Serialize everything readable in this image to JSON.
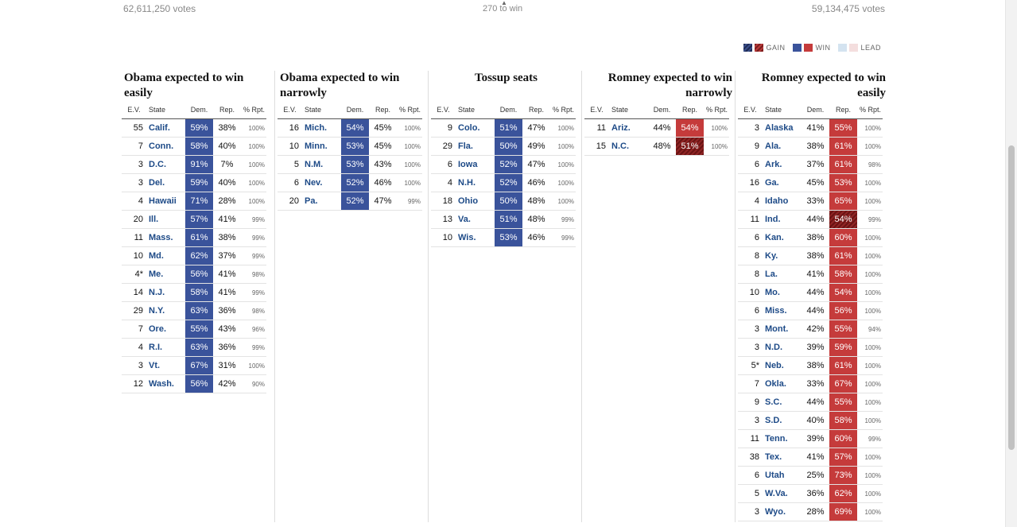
{
  "header": {
    "obama_votes": "62,611,250 votes",
    "romney_votes": "59,134,475 votes",
    "to_win": "270 to win"
  },
  "legend": {
    "gain": "GAIN",
    "win": "WIN",
    "lead": "LEAD"
  },
  "column_headers": {
    "ev": "E.V.",
    "state": "State",
    "dem": "Dem.",
    "rep": "Rep.",
    "rpt": "% Rpt."
  },
  "columns": [
    {
      "title": "Obama expected to win easily",
      "rows": [
        {
          "ev": "55",
          "state": "Calif.",
          "dem": "59%",
          "rep": "38%",
          "rpt": "100%",
          "win": "D"
        },
        {
          "ev": "7",
          "state": "Conn.",
          "dem": "58%",
          "rep": "40%",
          "rpt": "100%",
          "win": "D"
        },
        {
          "ev": "3",
          "state": "D.C.",
          "dem": "91%",
          "rep": "7%",
          "rpt": "100%",
          "win": "D"
        },
        {
          "ev": "3",
          "state": "Del.",
          "dem": "59%",
          "rep": "40%",
          "rpt": "100%",
          "win": "D"
        },
        {
          "ev": "4",
          "state": "Hawaii",
          "dem": "71%",
          "rep": "28%",
          "rpt": "100%",
          "win": "D"
        },
        {
          "ev": "20",
          "state": "Ill.",
          "dem": "57%",
          "rep": "41%",
          "rpt": "99%",
          "win": "D"
        },
        {
          "ev": "11",
          "state": "Mass.",
          "dem": "61%",
          "rep": "38%",
          "rpt": "99%",
          "win": "D"
        },
        {
          "ev": "10",
          "state": "Md.",
          "dem": "62%",
          "rep": "37%",
          "rpt": "99%",
          "win": "D"
        },
        {
          "ev": "4*",
          "state": "Me.",
          "dem": "56%",
          "rep": "41%",
          "rpt": "98%",
          "win": "D"
        },
        {
          "ev": "14",
          "state": "N.J.",
          "dem": "58%",
          "rep": "41%",
          "rpt": "99%",
          "win": "D"
        },
        {
          "ev": "29",
          "state": "N.Y.",
          "dem": "63%",
          "rep": "36%",
          "rpt": "98%",
          "win": "D"
        },
        {
          "ev": "7",
          "state": "Ore.",
          "dem": "55%",
          "rep": "43%",
          "rpt": "96%",
          "win": "D"
        },
        {
          "ev": "4",
          "state": "R.I.",
          "dem": "63%",
          "rep": "36%",
          "rpt": "99%",
          "win": "D"
        },
        {
          "ev": "3",
          "state": "Vt.",
          "dem": "67%",
          "rep": "31%",
          "rpt": "100%",
          "win": "D"
        },
        {
          "ev": "12",
          "state": "Wash.",
          "dem": "56%",
          "rep": "42%",
          "rpt": "90%",
          "win": "D"
        }
      ]
    },
    {
      "title": "Obama expected to win narrowly",
      "rows": [
        {
          "ev": "16",
          "state": "Mich.",
          "dem": "54%",
          "rep": "45%",
          "rpt": "100%",
          "win": "D"
        },
        {
          "ev": "10",
          "state": "Minn.",
          "dem": "53%",
          "rep": "45%",
          "rpt": "100%",
          "win": "D"
        },
        {
          "ev": "5",
          "state": "N.M.",
          "dem": "53%",
          "rep": "43%",
          "rpt": "100%",
          "win": "D"
        },
        {
          "ev": "6",
          "state": "Nev.",
          "dem": "52%",
          "rep": "46%",
          "rpt": "100%",
          "win": "D"
        },
        {
          "ev": "20",
          "state": "Pa.",
          "dem": "52%",
          "rep": "47%",
          "rpt": "99%",
          "win": "D"
        }
      ]
    },
    {
      "title": "Tossup seats",
      "rows": [
        {
          "ev": "9",
          "state": "Colo.",
          "dem": "51%",
          "rep": "47%",
          "rpt": "100%",
          "win": "D"
        },
        {
          "ev": "29",
          "state": "Fla.",
          "dem": "50%",
          "rep": "49%",
          "rpt": "100%",
          "win": "D"
        },
        {
          "ev": "6",
          "state": "Iowa",
          "dem": "52%",
          "rep": "47%",
          "rpt": "100%",
          "win": "D"
        },
        {
          "ev": "4",
          "state": "N.H.",
          "dem": "52%",
          "rep": "46%",
          "rpt": "100%",
          "win": "D"
        },
        {
          "ev": "18",
          "state": "Ohio",
          "dem": "50%",
          "rep": "48%",
          "rpt": "100%",
          "win": "D"
        },
        {
          "ev": "13",
          "state": "Va.",
          "dem": "51%",
          "rep": "48%",
          "rpt": "99%",
          "win": "D"
        },
        {
          "ev": "10",
          "state": "Wis.",
          "dem": "53%",
          "rep": "46%",
          "rpt": "99%",
          "win": "D"
        }
      ]
    },
    {
      "title": "Romney expected to win narrowly",
      "rows": [
        {
          "ev": "11",
          "state": "Ariz.",
          "dem": "44%",
          "rep": "54%",
          "rpt": "100%",
          "win": "R"
        },
        {
          "ev": "15",
          "state": "N.C.",
          "dem": "48%",
          "rep": "51%",
          "rpt": "100%",
          "win": "RG"
        }
      ]
    },
    {
      "title": "Romney expected to win easily",
      "rows": [
        {
          "ev": "3",
          "state": "Alaska",
          "dem": "41%",
          "rep": "55%",
          "rpt": "100%",
          "win": "R"
        },
        {
          "ev": "9",
          "state": "Ala.",
          "dem": "38%",
          "rep": "61%",
          "rpt": "100%",
          "win": "R"
        },
        {
          "ev": "6",
          "state": "Ark.",
          "dem": "37%",
          "rep": "61%",
          "rpt": "98%",
          "win": "R"
        },
        {
          "ev": "16",
          "state": "Ga.",
          "dem": "45%",
          "rep": "53%",
          "rpt": "100%",
          "win": "R"
        },
        {
          "ev": "4",
          "state": "Idaho",
          "dem": "33%",
          "rep": "65%",
          "rpt": "100%",
          "win": "R"
        },
        {
          "ev": "11",
          "state": "Ind.",
          "dem": "44%",
          "rep": "54%",
          "rpt": "99%",
          "win": "RG"
        },
        {
          "ev": "6",
          "state": "Kan.",
          "dem": "38%",
          "rep": "60%",
          "rpt": "100%",
          "win": "R"
        },
        {
          "ev": "8",
          "state": "Ky.",
          "dem": "38%",
          "rep": "61%",
          "rpt": "100%",
          "win": "R"
        },
        {
          "ev": "8",
          "state": "La.",
          "dem": "41%",
          "rep": "58%",
          "rpt": "100%",
          "win": "R"
        },
        {
          "ev": "10",
          "state": "Mo.",
          "dem": "44%",
          "rep": "54%",
          "rpt": "100%",
          "win": "R"
        },
        {
          "ev": "6",
          "state": "Miss.",
          "dem": "44%",
          "rep": "56%",
          "rpt": "100%",
          "win": "R"
        },
        {
          "ev": "3",
          "state": "Mont.",
          "dem": "42%",
          "rep": "55%",
          "rpt": "94%",
          "win": "R"
        },
        {
          "ev": "3",
          "state": "N.D.",
          "dem": "39%",
          "rep": "59%",
          "rpt": "100%",
          "win": "R"
        },
        {
          "ev": "5*",
          "state": "Neb.",
          "dem": "38%",
          "rep": "61%",
          "rpt": "100%",
          "win": "R"
        },
        {
          "ev": "7",
          "state": "Okla.",
          "dem": "33%",
          "rep": "67%",
          "rpt": "100%",
          "win": "R"
        },
        {
          "ev": "9",
          "state": "S.C.",
          "dem": "44%",
          "rep": "55%",
          "rpt": "100%",
          "win": "R"
        },
        {
          "ev": "3",
          "state": "S.D.",
          "dem": "40%",
          "rep": "58%",
          "rpt": "100%",
          "win": "R"
        },
        {
          "ev": "11",
          "state": "Tenn.",
          "dem": "39%",
          "rep": "60%",
          "rpt": "99%",
          "win": "R"
        },
        {
          "ev": "38",
          "state": "Tex.",
          "dem": "41%",
          "rep": "57%",
          "rpt": "100%",
          "win": "R"
        },
        {
          "ev": "6",
          "state": "Utah",
          "dem": "25%",
          "rep": "73%",
          "rpt": "100%",
          "win": "R"
        },
        {
          "ev": "5",
          "state": "W.Va.",
          "dem": "36%",
          "rep": "62%",
          "rpt": "100%",
          "win": "R"
        },
        {
          "ev": "3",
          "state": "Wyo.",
          "dem": "28%",
          "rep": "69%",
          "rpt": "100%",
          "win": "R"
        }
      ]
    }
  ],
  "colors": {
    "dem_win": "#3a539b",
    "rep_win": "#c53b3b",
    "state_link": "#1d4a87"
  }
}
